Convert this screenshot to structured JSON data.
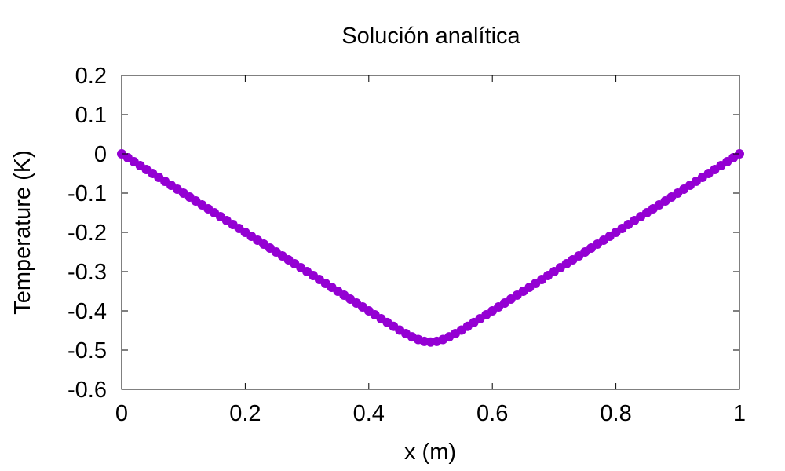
{
  "chart_data": {
    "type": "scatter",
    "title": "Solución analítica",
    "xlabel": "x (m)",
    "ylabel": "Temperature (K)",
    "xlim": [
      0,
      1
    ],
    "ylim": [
      -0.6,
      0.2
    ],
    "x_ticks": [
      0,
      0.2,
      0.4,
      0.6,
      0.8,
      1
    ],
    "x_tick_labels": [
      "0",
      "0.2",
      "0.4",
      "0.6",
      "0.8",
      "1"
    ],
    "y_ticks": [
      0.2,
      0.1,
      0,
      -0.1,
      -0.2,
      -0.3,
      -0.4,
      -0.5,
      -0.6
    ],
    "y_tick_labels": [
      "0.2",
      "0.1",
      "0",
      "-0.1",
      "-0.2",
      "-0.3",
      "-0.4",
      "-0.5",
      "-0.6"
    ],
    "grid": false,
    "legend": "none",
    "marker": "filled-circle",
    "series": [
      {
        "color": "#9400d3",
        "x": [
          0,
          0.01,
          0.02,
          0.03,
          0.04,
          0.05,
          0.06,
          0.07,
          0.08,
          0.09,
          0.1,
          0.11,
          0.12,
          0.13,
          0.14,
          0.15,
          0.16,
          0.17,
          0.18,
          0.19,
          0.2,
          0.21,
          0.22,
          0.23,
          0.24,
          0.25,
          0.26,
          0.27,
          0.28,
          0.29,
          0.3,
          0.31,
          0.32,
          0.33,
          0.34,
          0.35,
          0.36,
          0.37,
          0.38,
          0.39,
          0.4,
          0.41,
          0.42,
          0.43,
          0.44,
          0.45,
          0.46,
          0.47,
          0.48,
          0.49,
          0.5,
          0.51,
          0.52,
          0.53,
          0.54,
          0.55,
          0.56,
          0.57,
          0.58,
          0.59,
          0.6,
          0.61,
          0.62,
          0.63,
          0.64,
          0.65,
          0.66,
          0.67,
          0.68,
          0.69,
          0.7,
          0.71,
          0.72,
          0.73,
          0.74,
          0.75,
          0.76,
          0.77,
          0.78,
          0.79,
          0.8,
          0.81,
          0.82,
          0.83,
          0.84,
          0.85,
          0.86,
          0.87,
          0.88,
          0.89,
          0.9,
          0.91,
          0.92,
          0.93,
          0.94,
          0.95,
          0.96,
          0.97,
          0.98,
          0.99,
          1
        ],
        "y": [
          0,
          -0.01,
          -0.02,
          -0.03,
          -0.04,
          -0.05,
          -0.06,
          -0.07,
          -0.08,
          -0.09,
          -0.1,
          -0.11,
          -0.12,
          -0.13,
          -0.14,
          -0.15,
          -0.16,
          -0.17,
          -0.18,
          -0.19,
          -0.2,
          -0.21,
          -0.22,
          -0.23,
          -0.24,
          -0.25,
          -0.26,
          -0.27,
          -0.28,
          -0.29,
          -0.3,
          -0.31,
          -0.32,
          -0.33,
          -0.34,
          -0.35,
          -0.36,
          -0.37,
          -0.38,
          -0.39,
          -0.4,
          -0.41,
          -0.4199,
          -0.4298,
          -0.4396,
          -0.4491,
          -0.458,
          -0.4662,
          -0.473,
          -0.4777,
          -0.4794,
          -0.4777,
          -0.473,
          -0.4662,
          -0.458,
          -0.4491,
          -0.4396,
          -0.4298,
          -0.4199,
          -0.41,
          -0.4,
          -0.39,
          -0.38,
          -0.37,
          -0.36,
          -0.35,
          -0.34,
          -0.33,
          -0.32,
          -0.31,
          -0.3,
          -0.29,
          -0.28,
          -0.27,
          -0.26,
          -0.25,
          -0.24,
          -0.23,
          -0.22,
          -0.21,
          -0.2,
          -0.19,
          -0.18,
          -0.17,
          -0.16,
          -0.15,
          -0.14,
          -0.13,
          -0.12,
          -0.11,
          -0.1,
          -0.09,
          -0.08,
          -0.07,
          -0.06,
          -0.05,
          -0.04,
          -0.03,
          -0.02,
          -0.01,
          0
        ]
      }
    ]
  }
}
